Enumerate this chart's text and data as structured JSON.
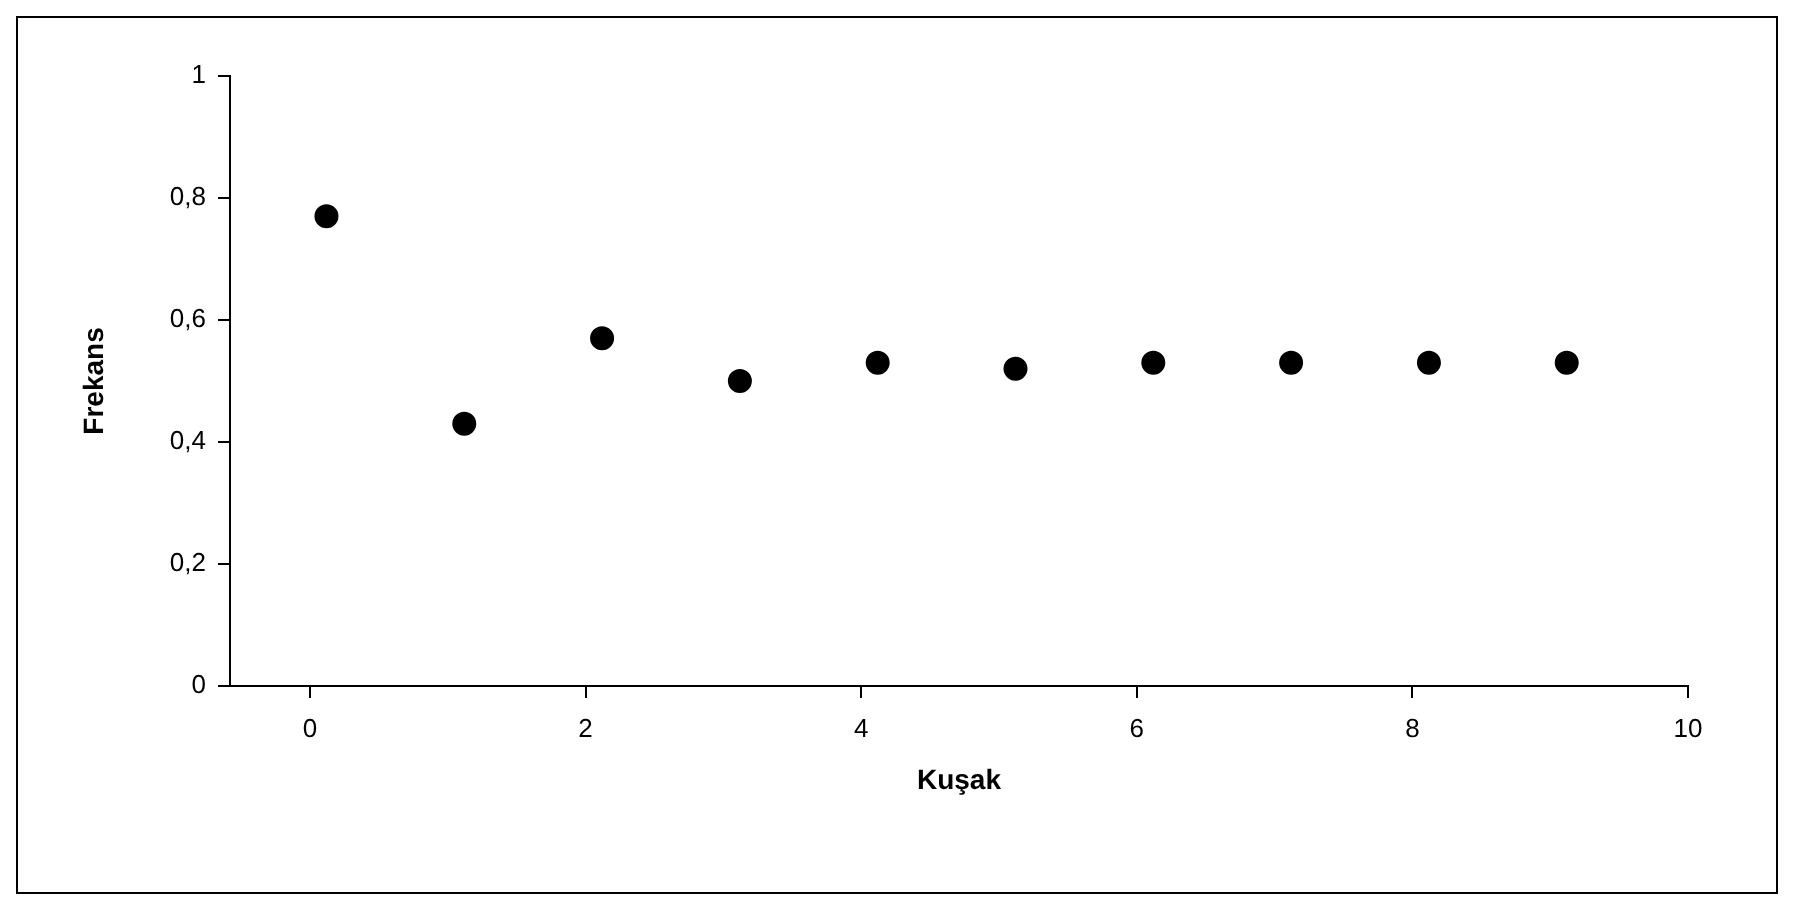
{
  "chart_data": {
    "type": "scatter",
    "xlabel": "Kuşak",
    "ylabel": "Frekans",
    "x": [
      0.12,
      1.12,
      2.12,
      3.12,
      4.12,
      5.12,
      6.12,
      7.12,
      8.12,
      9.12
    ],
    "series": [
      {
        "color": "#000000",
        "values": [
          0.77,
          0.43,
          0.57,
          0.5,
          0.53,
          0.52,
          0.53,
          0.53,
          0.53,
          0.53
        ]
      }
    ],
    "xlim": [
      -0.58,
      10
    ],
    "xticks": [
      0,
      2,
      4,
      6,
      8,
      10
    ],
    "ylim": [
      0,
      1
    ],
    "yticks": [
      {
        "value": 0,
        "label": "0"
      },
      {
        "value": 0.2,
        "label": "0,2"
      },
      {
        "value": 0.4,
        "label": "0,4"
      },
      {
        "value": 0.6,
        "label": "0,6"
      },
      {
        "value": 0.8,
        "label": "0,8"
      },
      {
        "value": 1,
        "label": "1"
      }
    ],
    "marker": "circle",
    "legend": false
  }
}
